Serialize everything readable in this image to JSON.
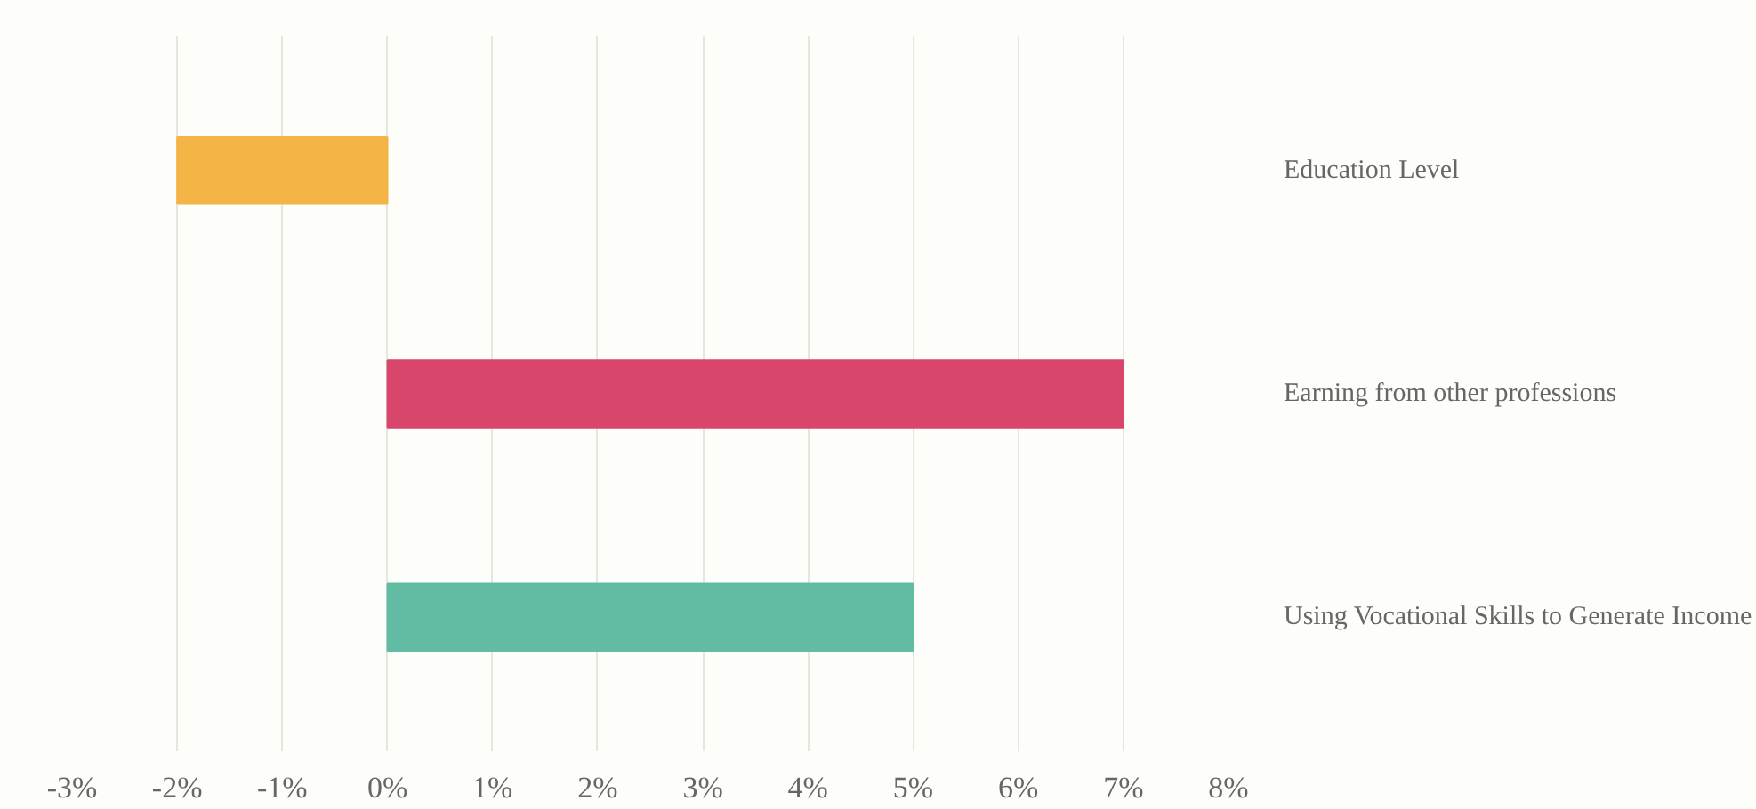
{
  "chart_data": {
    "type": "bar",
    "orientation": "horizontal",
    "categories": [
      "Education Level",
      "Earning from other professions",
      "Using Vocational Skills to Generate Income"
    ],
    "values": [
      -2,
      7,
      5
    ],
    "colors": [
      "#f4b446",
      "#d9466b",
      "#62bca3"
    ],
    "xlim": [
      -3,
      8
    ],
    "xticks": [
      {
        "value": -3,
        "label": "-3%"
      },
      {
        "value": -2,
        "label": "-2%"
      },
      {
        "value": -1,
        "label": "-1%"
      },
      {
        "value": 0,
        "label": "0%"
      },
      {
        "value": 1,
        "label": "1%"
      },
      {
        "value": 2,
        "label": "2%"
      },
      {
        "value": 3,
        "label": "3%"
      },
      {
        "value": 4,
        "label": "4%"
      },
      {
        "value": 5,
        "label": "5%"
      },
      {
        "value": 6,
        "label": "6%"
      },
      {
        "value": 7,
        "label": "7%"
      },
      {
        "value": 8,
        "label": "8%"
      }
    ],
    "grid": "x"
  }
}
